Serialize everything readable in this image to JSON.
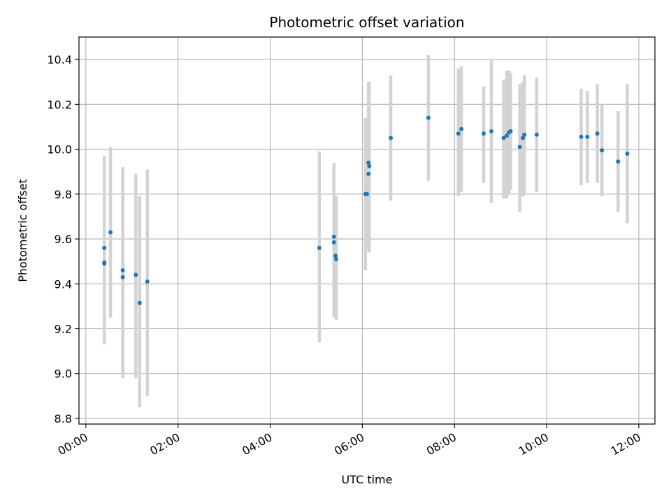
{
  "chart_data": {
    "type": "scatter",
    "title": "Photometric offset variation",
    "xlabel": "UTC time",
    "ylabel": "Photometric offset",
    "grid": true,
    "x_ticks": [
      "00:00",
      "02:00",
      "04:00",
      "06:00",
      "08:00",
      "10:00",
      "12:00"
    ],
    "y_ticks": [
      "8.8",
      "9.0",
      "9.2",
      "9.4",
      "9.6",
      "9.8",
      "10.0",
      "10.2",
      "10.4"
    ],
    "xlim": [
      "-00:09",
      "12:21"
    ],
    "ylim": [
      8.775,
      10.5
    ],
    "colors": {
      "points": "#1f77b4",
      "errorbars": "#d3d3d3",
      "grid": "#b0b0b0"
    },
    "series": [
      {
        "points": [
          {
            "x": "00:24",
            "y": 9.56,
            "lo": 9.15,
            "hi": 9.97
          },
          {
            "x": "00:24",
            "y": 9.49,
            "lo": 9.13,
            "hi": 9.85
          },
          {
            "x": "00:24",
            "y": 9.495,
            "lo": 9.2,
            "hi": 9.8
          },
          {
            "x": "00:32",
            "y": 9.63,
            "lo": 9.25,
            "hi": 10.01
          },
          {
            "x": "00:48",
            "y": 9.46,
            "lo": 9.0,
            "hi": 9.92
          },
          {
            "x": "00:48",
            "y": 9.43,
            "lo": 8.98,
            "hi": 9.88
          },
          {
            "x": "01:05",
            "y": 9.44,
            "lo": 8.98,
            "hi": 9.89
          },
          {
            "x": "01:10",
            "y": 9.315,
            "lo": 8.85,
            "hi": 9.79
          },
          {
            "x": "01:20",
            "y": 9.41,
            "lo": 8.9,
            "hi": 9.91
          },
          {
            "x": "05:04",
            "y": 9.56,
            "lo": 9.14,
            "hi": 9.99
          },
          {
            "x": "05:23",
            "y": 9.61,
            "lo": 9.28,
            "hi": 9.94
          },
          {
            "x": "05:23",
            "y": 9.585,
            "lo": 9.25,
            "hi": 9.92
          },
          {
            "x": "05:25",
            "y": 9.525,
            "lo": 9.27,
            "hi": 9.78
          },
          {
            "x": "05:26",
            "y": 9.51,
            "lo": 9.24,
            "hi": 9.79
          },
          {
            "x": "06:04",
            "y": 9.8,
            "lo": 9.46,
            "hi": 10.14
          },
          {
            "x": "06:06",
            "y": 9.8,
            "lo": 9.6,
            "hi": 10.0
          },
          {
            "x": "06:08",
            "y": 9.94,
            "lo": 9.58,
            "hi": 10.3
          },
          {
            "x": "06:08",
            "y": 9.89,
            "lo": 9.55,
            "hi": 10.23
          },
          {
            "x": "06:09",
            "y": 9.925,
            "lo": 9.54,
            "hi": 10.3
          },
          {
            "x": "06:37",
            "y": 10.05,
            "lo": 9.77,
            "hi": 10.33
          },
          {
            "x": "07:26",
            "y": 10.14,
            "lo": 9.86,
            "hi": 10.42
          },
          {
            "x": "08:05",
            "y": 10.07,
            "lo": 9.79,
            "hi": 10.36
          },
          {
            "x": "08:09",
            "y": 10.09,
            "lo": 9.81,
            "hi": 10.37
          },
          {
            "x": "08:38",
            "y": 10.07,
            "lo": 9.85,
            "hi": 10.28
          },
          {
            "x": "08:48",
            "y": 10.08,
            "lo": 9.76,
            "hi": 10.4
          },
          {
            "x": "09:04",
            "y": 10.05,
            "lo": 9.78,
            "hi": 10.31
          },
          {
            "x": "09:08",
            "y": 10.06,
            "lo": 9.78,
            "hi": 10.35
          },
          {
            "x": "09:11",
            "y": 10.075,
            "lo": 9.8,
            "hi": 10.35
          },
          {
            "x": "09:13",
            "y": 10.08,
            "lo": 9.82,
            "hi": 10.34
          },
          {
            "x": "09:25",
            "y": 10.01,
            "lo": 9.72,
            "hi": 10.29
          },
          {
            "x": "09:29",
            "y": 10.05,
            "lo": 9.79,
            "hi": 10.3
          },
          {
            "x": "09:31",
            "y": 10.065,
            "lo": 9.8,
            "hi": 10.33
          },
          {
            "x": "09:47",
            "y": 10.065,
            "lo": 9.81,
            "hi": 10.32
          },
          {
            "x": "10:45",
            "y": 10.055,
            "lo": 9.84,
            "hi": 10.27
          },
          {
            "x": "10:53",
            "y": 10.055,
            "lo": 9.85,
            "hi": 10.26
          },
          {
            "x": "11:06",
            "y": 10.07,
            "lo": 9.85,
            "hi": 10.29
          },
          {
            "x": "11:12",
            "y": 9.995,
            "lo": 9.79,
            "hi": 10.2
          },
          {
            "x": "11:33",
            "y": 9.945,
            "lo": 9.72,
            "hi": 10.17
          },
          {
            "x": "11:45",
            "y": 9.98,
            "lo": 9.67,
            "hi": 10.29
          }
        ]
      }
    ]
  }
}
